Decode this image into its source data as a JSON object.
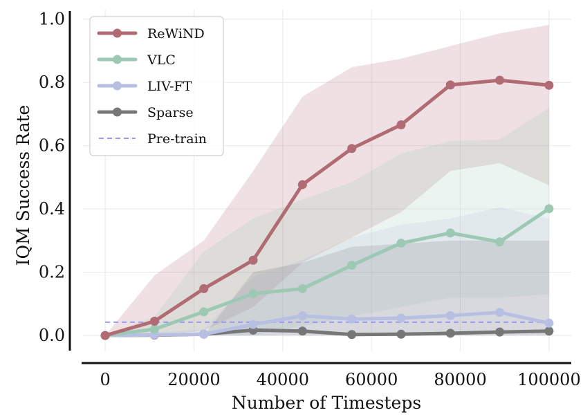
{
  "chart_data": {
    "type": "line",
    "title": "",
    "xlabel": "Number of Timesteps",
    "ylabel": "IQM Success Rate",
    "xlim": [
      -5000,
      105000
    ],
    "ylim": [
      -0.05,
      1.03
    ],
    "xticks": [
      0,
      20000,
      40000,
      60000,
      80000,
      100000
    ],
    "xtick_labels": [
      "0",
      "20000",
      "40000",
      "60000",
      "80000",
      "100000"
    ],
    "yticks": [
      0.0,
      0.2,
      0.4,
      0.6,
      0.8,
      1.0
    ],
    "ytick_labels": [
      "0.0",
      "0.2",
      "0.4",
      "0.6",
      "0.8",
      "1.0"
    ],
    "grid": true,
    "legend_position": "top-left",
    "x": [
      0,
      11111,
      22222,
      33333,
      44444,
      55556,
      66667,
      77778,
      88889,
      100000
    ],
    "series": [
      {
        "name": "ReWiND",
        "color": "#b06b74",
        "values": [
          0.0,
          0.045,
          0.148,
          0.238,
          0.477,
          0.591,
          0.666,
          0.792,
          0.807,
          0.791
        ],
        "lower": [
          0.0,
          0.0,
          0.015,
          0.09,
          0.23,
          0.31,
          0.39,
          0.52,
          0.545,
          0.475
        ],
        "upper": [
          0.0,
          0.19,
          0.3,
          0.52,
          0.755,
          0.848,
          0.875,
          0.915,
          0.955,
          0.982
        ]
      },
      {
        "name": "VLC",
        "color": "#9dc9b4",
        "values": [
          0.0,
          0.02,
          0.075,
          0.132,
          0.148,
          0.222,
          0.292,
          0.324,
          0.296,
          0.401
        ],
        "lower": [
          0.0,
          0.0,
          0.0,
          0.0,
          0.03,
          0.06,
          0.09,
          0.12,
          0.12,
          0.13
        ],
        "upper": [
          0.0,
          0.06,
          0.265,
          0.37,
          0.43,
          0.485,
          0.575,
          0.615,
          0.62,
          0.72
        ]
      },
      {
        "name": "LIV-FT",
        "color": "#b7c0e2",
        "values": [
          0.0,
          0.002,
          0.004,
          0.035,
          0.062,
          0.052,
          0.055,
          0.063,
          0.073,
          0.039
        ],
        "lower": [
          0.0,
          0.0,
          0.0,
          0.0,
          0.0,
          0.0,
          0.0,
          0.0,
          0.0,
          0.0
        ],
        "upper": [
          0.0,
          0.01,
          0.02,
          0.185,
          0.24,
          0.31,
          0.35,
          0.37,
          0.405,
          0.37
        ]
      },
      {
        "name": "Sparse",
        "color": "#777777",
        "values": [
          0.0,
          0.001,
          0.004,
          0.017,
          0.014,
          0.003,
          0.004,
          0.007,
          0.011,
          0.014
        ],
        "lower": [
          0.0,
          0.0,
          0.0,
          0.0,
          0.0,
          0.0,
          0.0,
          0.0,
          0.0,
          0.0
        ],
        "upper": [
          0.0,
          0.0,
          0.0,
          0.2,
          0.23,
          0.28,
          0.29,
          0.3,
          0.3,
          0.3
        ]
      },
      {
        "name": "Pre-train",
        "color": "#9a9ae6",
        "dashed": true,
        "constant": 0.042
      }
    ]
  }
}
